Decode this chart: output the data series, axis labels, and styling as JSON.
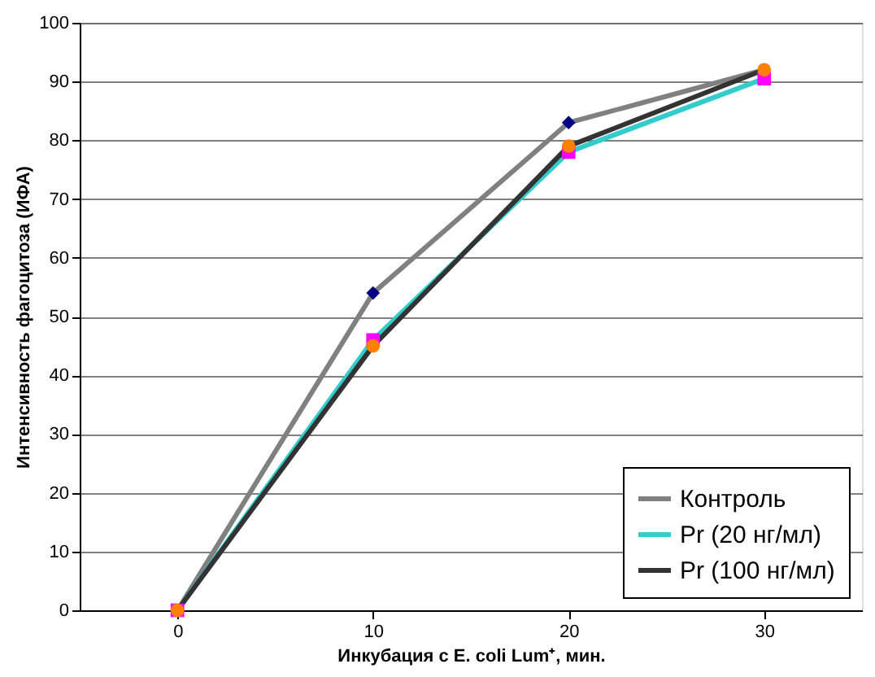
{
  "chart_data": {
    "type": "line",
    "categories": [
      "0",
      "10",
      "20",
      "30"
    ],
    "xlabel": "Инкубация с E. coli Lum⁺, мин.",
    "ylabel": "Интенсивность фагоцитоза (ИФА)",
    "ylim": [
      0,
      100
    ],
    "yticks": [
      0,
      10,
      20,
      30,
      40,
      50,
      60,
      70,
      80,
      90,
      100
    ],
    "grid": "y",
    "legend": "bottom right",
    "series": [
      {
        "name": "Контроль",
        "color": "#808080",
        "marker": "diamond",
        "colors": [
          "#000080",
          "#000080",
          "#000080",
          "#000080"
        ],
        "values": [
          0,
          54,
          83,
          92
        ]
      },
      {
        "name": "Pr (20 нг/мл)",
        "color": "#33cccc",
        "marker": "square",
        "colors": [
          "#ff00ff",
          "#ff00ff",
          "#ff00ff",
          "#ff00ff"
        ],
        "values": [
          0,
          46,
          78,
          90.5
        ]
      },
      {
        "name": "Pr (100 нг/мл)",
        "color": "#333333",
        "marker": "circle",
        "colors": [
          "#ff8000",
          "#ff8000",
          "#ff8000",
          "#ff8000"
        ],
        "values": [
          0,
          45,
          79,
          92
        ]
      }
    ]
  }
}
